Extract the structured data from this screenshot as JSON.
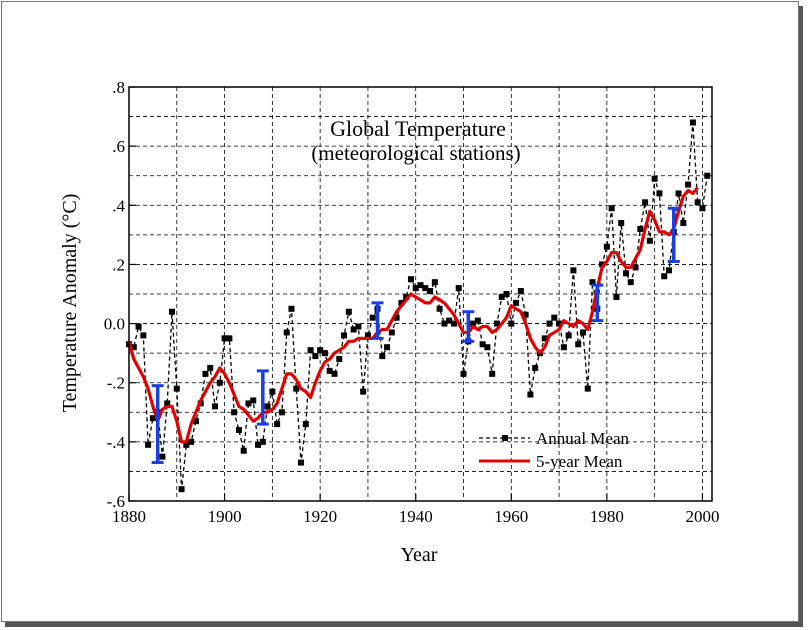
{
  "chart_data": {
    "type": "line",
    "title": "Global Temperature",
    "subtitle": "(meteorological stations)",
    "xlabel": "Year",
    "ylabel": "Temperature Anomaly (°C)",
    "xlim": [
      1880,
      2002
    ],
    "ylim": [
      -0.6,
      0.8
    ],
    "xticks": [
      1880,
      1900,
      1920,
      1940,
      1960,
      1980,
      2000
    ],
    "xtick_labels": [
      "1880",
      "1900",
      "1920",
      "1940",
      "1960",
      "1980",
      "2000"
    ],
    "yticks": [
      -0.6,
      -0.4,
      -0.2,
      0.0,
      0.2,
      0.4,
      0.6,
      0.8
    ],
    "ytick_labels": [
      "-.6",
      "-.4",
      "-.2",
      "0.0",
      ".2",
      ".4",
      ".6",
      ".8"
    ],
    "grid": true,
    "legend_position": "bottom-right",
    "colors": {
      "annual": "#000000",
      "five_year": "#e00000",
      "error_bars": "#1a3fe0"
    },
    "series": [
      {
        "name": "Annual Mean",
        "style": "dashed-squares",
        "x": [
          1880,
          1881,
          1882,
          1883,
          1884,
          1885,
          1886,
          1887,
          1888,
          1889,
          1890,
          1891,
          1892,
          1893,
          1894,
          1895,
          1896,
          1897,
          1898,
          1899,
          1900,
          1901,
          1902,
          1903,
          1904,
          1905,
          1906,
          1907,
          1908,
          1909,
          1910,
          1911,
          1912,
          1913,
          1914,
          1915,
          1916,
          1917,
          1918,
          1919,
          1920,
          1921,
          1922,
          1923,
          1924,
          1925,
          1926,
          1927,
          1928,
          1929,
          1930,
          1931,
          1932,
          1933,
          1934,
          1935,
          1936,
          1937,
          1938,
          1939,
          1940,
          1941,
          1942,
          1943,
          1944,
          1945,
          1946,
          1947,
          1948,
          1949,
          1950,
          1951,
          1952,
          1953,
          1954,
          1955,
          1956,
          1957,
          1958,
          1959,
          1960,
          1961,
          1962,
          1963,
          1964,
          1965,
          1966,
          1967,
          1968,
          1969,
          1970,
          1971,
          1972,
          1973,
          1974,
          1975,
          1976,
          1977,
          1978,
          1979,
          1980,
          1981,
          1982,
          1983,
          1984,
          1985,
          1986,
          1987,
          1988,
          1989,
          1990,
          1991,
          1992,
          1993,
          1994,
          1995,
          1996,
          1997,
          1998,
          1999,
          2000,
          2001
        ],
        "values": [
          -0.07,
          -0.08,
          -0.01,
          -0.04,
          -0.41,
          -0.32,
          -0.3,
          -0.45,
          -0.27,
          0.04,
          -0.22,
          -0.56,
          -0.41,
          -0.4,
          -0.33,
          -0.27,
          -0.17,
          -0.15,
          -0.28,
          -0.2,
          -0.05,
          -0.05,
          -0.3,
          -0.36,
          -0.43,
          -0.27,
          -0.26,
          -0.41,
          -0.4,
          -0.28,
          -0.23,
          -0.34,
          -0.3,
          -0.03,
          0.05,
          -0.22,
          -0.47,
          -0.34,
          -0.09,
          -0.11,
          -0.09,
          -0.1,
          -0.16,
          -0.17,
          -0.12,
          -0.04,
          0.04,
          -0.02,
          -0.01,
          -0.23,
          -0.04,
          0.02,
          0.05,
          -0.11,
          -0.08,
          -0.03,
          0.02,
          0.07,
          0.09,
          0.15,
          0.12,
          0.13,
          0.12,
          0.11,
          0.14,
          0.05,
          0.0,
          0.01,
          0.0,
          0.12,
          -0.17,
          -0.06,
          0.0,
          0.01,
          -0.07,
          -0.08,
          -0.17,
          0.0,
          0.09,
          0.1,
          0.0,
          0.07,
          0.11,
          0.03,
          -0.24,
          -0.15,
          -0.1,
          -0.05,
          0.0,
          0.02,
          0.0,
          -0.08,
          -0.04,
          0.18,
          -0.07,
          -0.03,
          -0.22,
          0.14,
          0.05,
          0.2,
          0.26,
          0.39,
          0.09,
          0.34,
          0.17,
          0.14,
          0.19,
          0.32,
          0.41,
          0.28,
          0.49,
          0.44,
          0.16,
          0.18,
          0.31,
          0.44,
          0.34,
          0.47,
          0.68,
          0.41,
          0.39,
          0.5
        ]
      },
      {
        "name": "5-year Mean",
        "style": "solid",
        "x": [
          1880,
          1881,
          1882,
          1883,
          1884,
          1885,
          1886,
          1887,
          1888,
          1889,
          1890,
          1891,
          1892,
          1893,
          1894,
          1895,
          1896,
          1897,
          1898,
          1899,
          1900,
          1901,
          1902,
          1903,
          1904,
          1905,
          1906,
          1907,
          1908,
          1909,
          1910,
          1911,
          1912,
          1913,
          1914,
          1915,
          1916,
          1917,
          1918,
          1919,
          1920,
          1921,
          1922,
          1923,
          1924,
          1925,
          1926,
          1927,
          1928,
          1929,
          1930,
          1931,
          1932,
          1933,
          1934,
          1935,
          1936,
          1937,
          1938,
          1939,
          1940,
          1941,
          1942,
          1943,
          1944,
          1945,
          1946,
          1947,
          1948,
          1949,
          1950,
          1951,
          1952,
          1953,
          1954,
          1955,
          1956,
          1957,
          1958,
          1959,
          1960,
          1961,
          1962,
          1963,
          1964,
          1965,
          1966,
          1967,
          1968,
          1969,
          1970,
          1971,
          1972,
          1973,
          1974,
          1975,
          1976,
          1977,
          1978,
          1979,
          1980,
          1981,
          1982,
          1983,
          1984,
          1985,
          1986,
          1987,
          1988,
          1989,
          1990,
          1991,
          1992,
          1993,
          1994,
          1995,
          1996,
          1997,
          1998,
          1999
        ],
        "values": [
          -0.06,
          -0.12,
          -0.15,
          -0.18,
          -0.22,
          -0.28,
          -0.33,
          -0.29,
          -0.28,
          -0.28,
          -0.33,
          -0.4,
          -0.4,
          -0.34,
          -0.3,
          -0.26,
          -0.23,
          -0.2,
          -0.18,
          -0.15,
          -0.17,
          -0.2,
          -0.24,
          -0.28,
          -0.29,
          -0.31,
          -0.33,
          -0.32,
          -0.3,
          -0.3,
          -0.29,
          -0.27,
          -0.22,
          -0.17,
          -0.17,
          -0.19,
          -0.22,
          -0.23,
          -0.25,
          -0.2,
          -0.16,
          -0.13,
          -0.12,
          -0.1,
          -0.09,
          -0.08,
          -0.06,
          -0.06,
          -0.05,
          -0.05,
          -0.05,
          -0.05,
          -0.03,
          -0.02,
          -0.02,
          0.01,
          0.04,
          0.06,
          0.08,
          0.1,
          0.09,
          0.08,
          0.07,
          0.07,
          0.09,
          0.08,
          0.07,
          0.05,
          0.03,
          0.0,
          -0.03,
          -0.03,
          -0.01,
          -0.02,
          -0.01,
          -0.01,
          -0.03,
          -0.02,
          0.0,
          0.02,
          0.06,
          0.05,
          0.04,
          0.0,
          -0.05,
          -0.08,
          -0.1,
          -0.08,
          -0.04,
          -0.03,
          -0.02,
          0.01,
          0.0,
          -0.01,
          0.01,
          0.0,
          -0.02,
          0.04,
          0.12,
          0.19,
          0.21,
          0.24,
          0.24,
          0.21,
          0.19,
          0.19,
          0.22,
          0.25,
          0.32,
          0.38,
          0.35,
          0.31,
          0.31,
          0.3,
          0.32,
          0.38,
          0.43,
          0.45,
          0.44,
          0.46
        ]
      }
    ],
    "error_bars": [
      {
        "x": 1886,
        "low": -0.47,
        "high": -0.21
      },
      {
        "x": 1908,
        "low": -0.34,
        "high": -0.16
      },
      {
        "x": 1932,
        "low": -0.05,
        "high": 0.07
      },
      {
        "x": 1951,
        "low": -0.06,
        "high": 0.04
      },
      {
        "x": 1978,
        "low": 0.01,
        "high": 0.13
      },
      {
        "x": 1994,
        "low": 0.21,
        "high": 0.39
      }
    ],
    "legend": [
      {
        "label": "Annual Mean",
        "series": 0
      },
      {
        "label": "5-year Mean",
        "series": 1
      }
    ]
  }
}
